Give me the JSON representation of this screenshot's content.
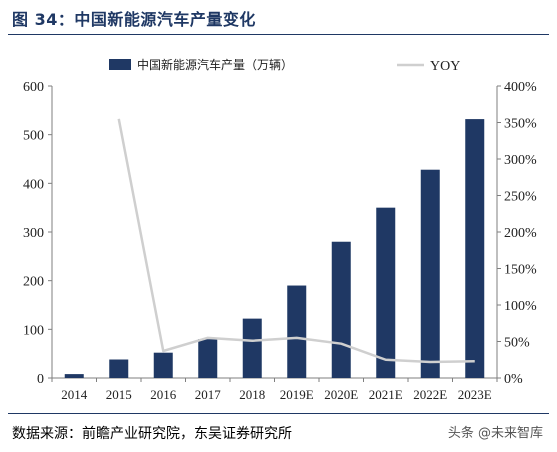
{
  "figure": {
    "title": "图 34：中国新能源汽车产量变化",
    "source": "数据来源：前瞻产业研究院，东吴证券研究所",
    "watermark": "头条 @未来智库"
  },
  "colors": {
    "bar": "#1f3864",
    "line": "#cfcfcf",
    "rule": "#1f3864"
  },
  "chart_data": {
    "type": "bar",
    "categories": [
      "2014",
      "2015",
      "2016",
      "2017",
      "2018",
      "2019E",
      "2020E",
      "2021E",
      "2022E",
      "2023E"
    ],
    "series": [
      {
        "name": "中国新能源汽车产量（万辆）",
        "type": "bar",
        "axis": "left",
        "values": [
          8,
          38,
          52,
          80,
          122,
          190,
          280,
          350,
          428,
          532
        ]
      },
      {
        "name": "YOY",
        "type": "line",
        "axis": "right",
        "values": [
          null,
          355,
          37,
          55,
          51,
          55,
          47,
          25,
          22,
          23
        ]
      }
    ],
    "y_left": {
      "ticks": [
        "0",
        "100",
        "200",
        "300",
        "400",
        "500",
        "600"
      ],
      "min": 0,
      "max": 600
    },
    "y_right": {
      "ticks": [
        "0%",
        "50%",
        "100%",
        "150%",
        "200%",
        "250%",
        "300%",
        "350%",
        "400%"
      ],
      "min": 0,
      "max": 400
    },
    "legend": {
      "position": "top",
      "entries": [
        "中国新能源汽车产量（万辆）",
        "YOY"
      ]
    },
    "grid": false
  }
}
